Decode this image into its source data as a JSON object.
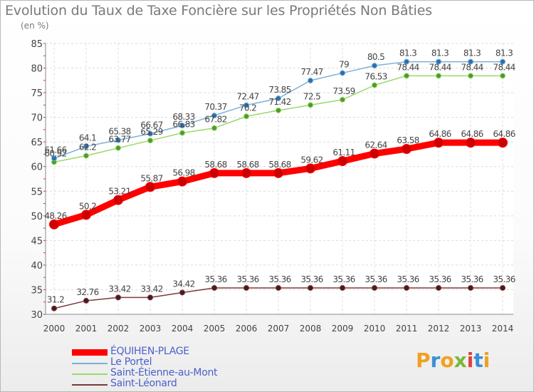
{
  "title": "Evolution du Taux de Taxe Foncière sur les Propriétés Non Bâties",
  "subtitle": "(en %)",
  "logo": {
    "text": "Proxiti",
    "colors": [
      "#f0a020",
      "#3a8fd8",
      "#f0a020",
      "#7ab83c",
      "#e04040",
      "#3a8fd8",
      "#f0a020"
    ]
  },
  "chart_data": {
    "type": "line",
    "x": [
      2000,
      2001,
      2002,
      2003,
      2004,
      2005,
      2006,
      2007,
      2008,
      2009,
      2010,
      2011,
      2012,
      2013,
      2014
    ],
    "ylim": [
      30,
      85
    ],
    "yticks": [
      30,
      35,
      40,
      45,
      50,
      55,
      60,
      65,
      70,
      75,
      80,
      85
    ],
    "grid": true,
    "legend_position": "bottom-left",
    "series": [
      {
        "name": "ÉQUIHEN-PLAGE",
        "color": "#ff0000",
        "values": [
          48.26,
          50.2,
          53.21,
          55.87,
          56.98,
          58.68,
          58.68,
          58.68,
          59.62,
          61.11,
          62.64,
          63.58,
          64.86,
          64.86,
          64.86
        ],
        "labels": [
          "48.26",
          "50.2",
          "53.21",
          "55.87",
          "56.98",
          "58.68",
          "58.68",
          "58.68",
          "59.62",
          "61.11",
          "62.64",
          "63.58",
          "64.86",
          "64.86",
          "64.86"
        ]
      },
      {
        "name": "Le Portel",
        "color": "#7ab0d8",
        "values": [
          61.66,
          64.1,
          65.38,
          66.67,
          68.33,
          70.37,
          72.47,
          73.85,
          77.47,
          79,
          80.5,
          81.3,
          81.3,
          81.3,
          81.3
        ],
        "labels": [
          "61.66",
          "64.1",
          "65.38",
          "66.67",
          "68.33",
          "70.37",
          "72.47",
          "73.85",
          "77.47",
          "79",
          "80.5",
          "81.3",
          "81.3",
          "81.3",
          "81.3"
        ]
      },
      {
        "name": "Saint-Étienne-au-Mont",
        "color": "#9ad86a",
        "values": [
          60.92,
          62.2,
          63.77,
          65.29,
          66.83,
          67.82,
          70.2,
          71.42,
          72.5,
          73.59,
          76.53,
          78.44,
          78.44,
          78.44,
          78.44
        ],
        "labels": [
          "60.92",
          "62.2",
          "63.77",
          "65.29",
          "66.83",
          "67.82",
          "70.2",
          "71.42",
          "72.5",
          "73.59",
          "76.53",
          "78.44",
          "78.44",
          "78.44",
          "78.44"
        ]
      },
      {
        "name": "Saint-Léonard",
        "color": "#7a3a3a",
        "values": [
          31.2,
          32.76,
          33.42,
          33.42,
          34.42,
          35.36,
          35.36,
          35.36,
          35.36,
          35.36,
          35.36,
          35.36,
          35.36,
          35.36,
          35.36
        ],
        "labels": [
          "31.2",
          "32.76",
          "33.42",
          "33.42",
          "34.42",
          "35.36",
          "35.36",
          "35.36",
          "35.36",
          "35.36",
          "35.36",
          "35.36",
          "35.36",
          "35.36",
          "35.36"
        ]
      }
    ]
  }
}
